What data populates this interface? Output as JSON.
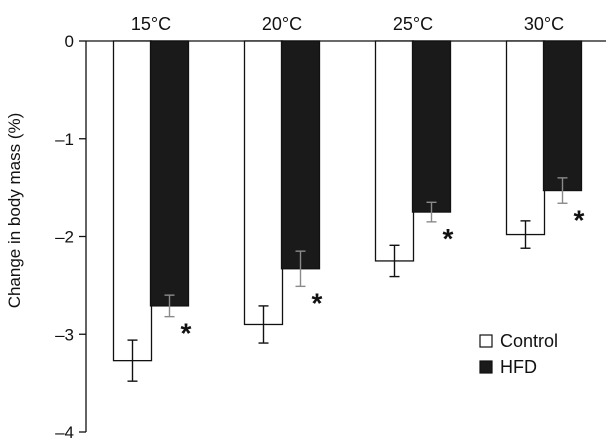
{
  "chart_data": {
    "type": "bar",
    "categories": [
      "15°C",
      "20°C",
      "25°C",
      "30°C"
    ],
    "series": [
      {
        "name": "Control",
        "values": [
          -3.27,
          -2.9,
          -2.25,
          -1.98
        ],
        "errors": [
          0.21,
          0.19,
          0.16,
          0.14
        ],
        "fill": "#ffffff",
        "stroke": "#111111"
      },
      {
        "name": "HFD",
        "values": [
          -2.71,
          -2.33,
          -1.75,
          -1.53
        ],
        "errors": [
          0.11,
          0.18,
          0.1,
          0.13
        ],
        "fill": "#1a1a1a",
        "stroke": "#111111"
      }
    ],
    "significance": [
      "*",
      "*",
      "*",
      "*"
    ],
    "ylabel": "Change in body mass (%)",
    "xlabel": "",
    "ylim": [
      -4,
      0
    ],
    "yticks": [
      0,
      -1,
      -2,
      -3,
      -4
    ],
    "ytick_labels": [
      "0",
      "–1",
      "–2",
      "–3",
      "–4"
    ],
    "legend_position": "bottom-right",
    "grid": false,
    "error_bar_colors": {
      "Control": "#111111",
      "HFD": "#8a8a8a"
    }
  }
}
